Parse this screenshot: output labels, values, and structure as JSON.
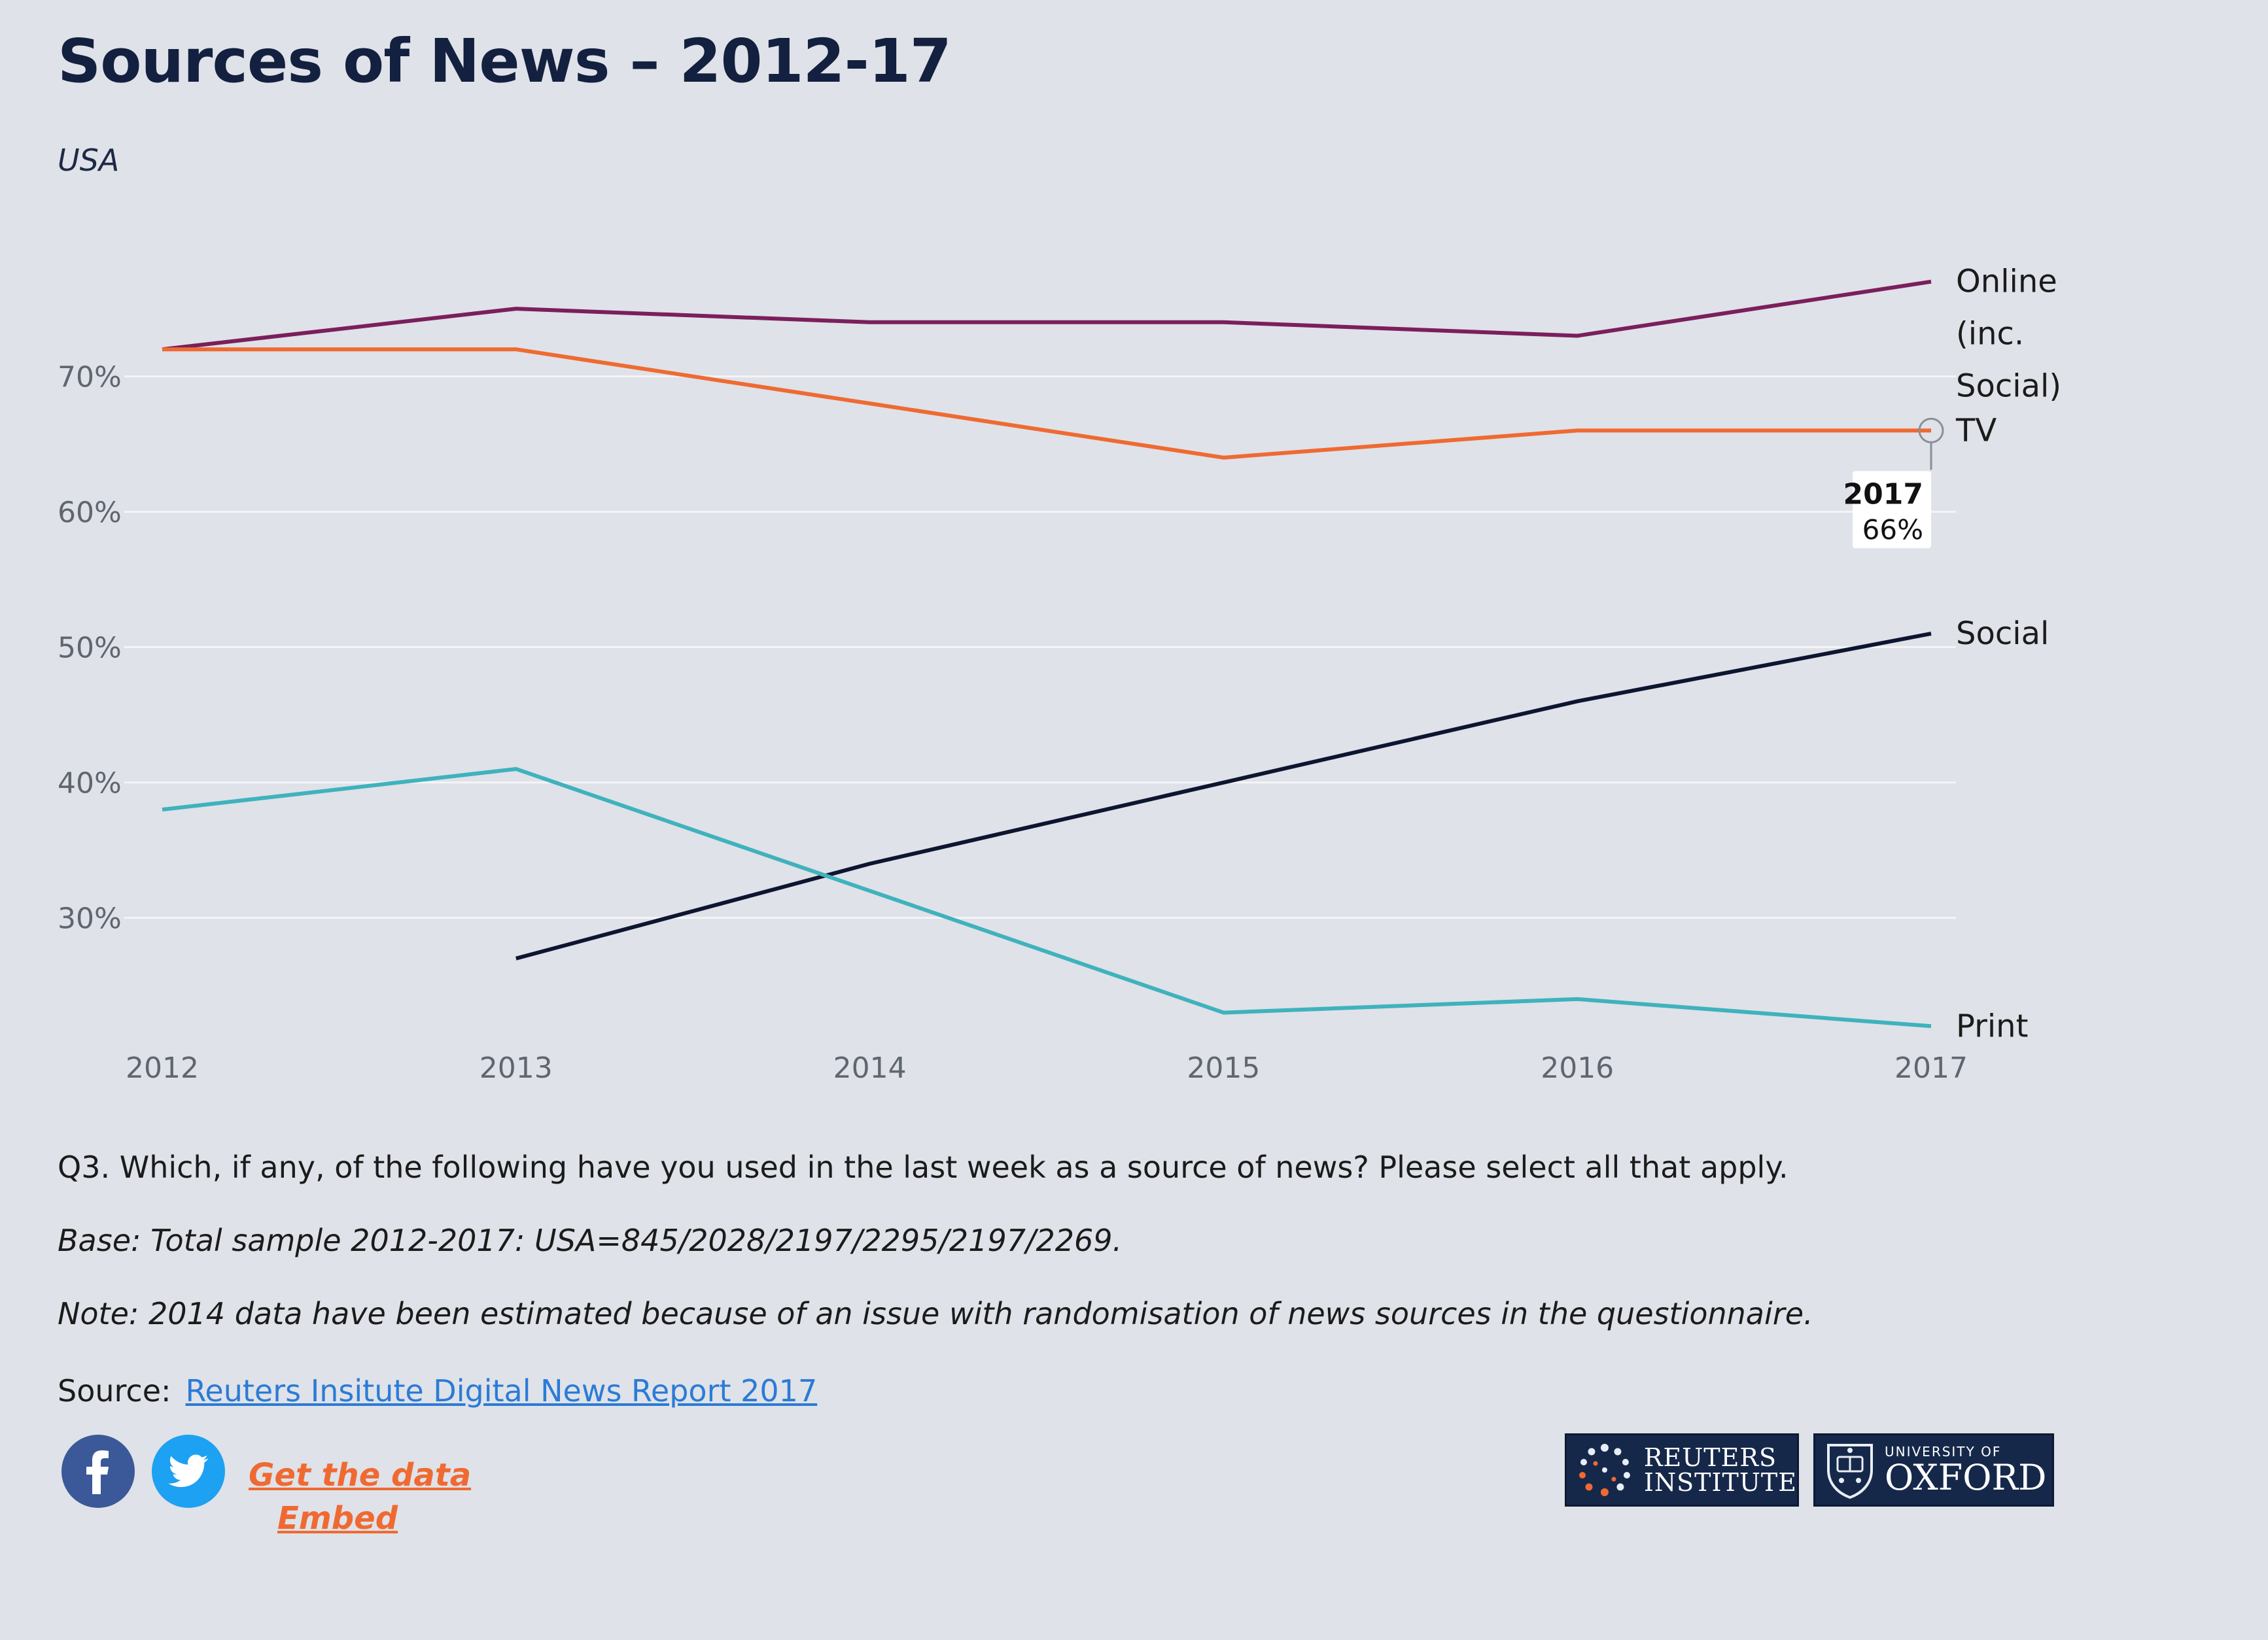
{
  "title": "Sources of News – 2012-17",
  "subtitle": "USA",
  "chart_data": {
    "type": "line",
    "x": [
      2012,
      2013,
      2014,
      2015,
      2016,
      2017
    ],
    "ylim": [
      21,
      78
    ],
    "yticks": [
      30,
      40,
      50,
      60,
      70
    ],
    "ytick_labels": [
      "30%",
      "40%",
      "50%",
      "60%",
      "70%"
    ],
    "grid": true,
    "series": [
      {
        "name": "Online (inc. Social)",
        "label_lines": [
          "Online",
          "(inc.",
          "Social)"
        ],
        "color": "#7b1f5c",
        "values": [
          72,
          75,
          74,
          74,
          73,
          77
        ]
      },
      {
        "name": "TV",
        "label_lines": [
          "TV"
        ],
        "color": "#ef6a32",
        "values": [
          72,
          72,
          68,
          64,
          66,
          66
        ]
      },
      {
        "name": "Social",
        "label_lines": [
          "Social"
        ],
        "color": "#0e1530",
        "values": [
          null,
          27,
          34,
          40,
          46,
          51
        ]
      },
      {
        "name": "Print",
        "label_lines": [
          "Print"
        ],
        "color": "#3fb2bd",
        "values": [
          38,
          41,
          32,
          23,
          24,
          22
        ]
      }
    ],
    "tooltip": {
      "series": "TV",
      "x": 2017,
      "x_label": "2017",
      "value_label": "66%"
    }
  },
  "footnotes": {
    "q3": "Q3. Which, if any, of the following have you used in the last week as a source of news? Please select all that apply.",
    "base": "Base: Total sample 2012-2017: USA=845/2028/2197/2295/2197/2269.",
    "note": "Note: 2014 data have been estimated because of an issue with randomisation of news sources in the questionnaire.",
    "source_label": "Source:",
    "source_link": "Reuters Insitute Digital News Report 2017"
  },
  "actions": {
    "get_data": "Get the data",
    "embed": "Embed"
  },
  "logos": {
    "reuters_line1": "REUTERS",
    "reuters_line2": "INSTITUTE",
    "oxford_small": "UNIVERSITY OF",
    "oxford_big": "OXFORD"
  },
  "icons": {
    "facebook": "facebook-icon",
    "twitter": "twitter-icon"
  }
}
